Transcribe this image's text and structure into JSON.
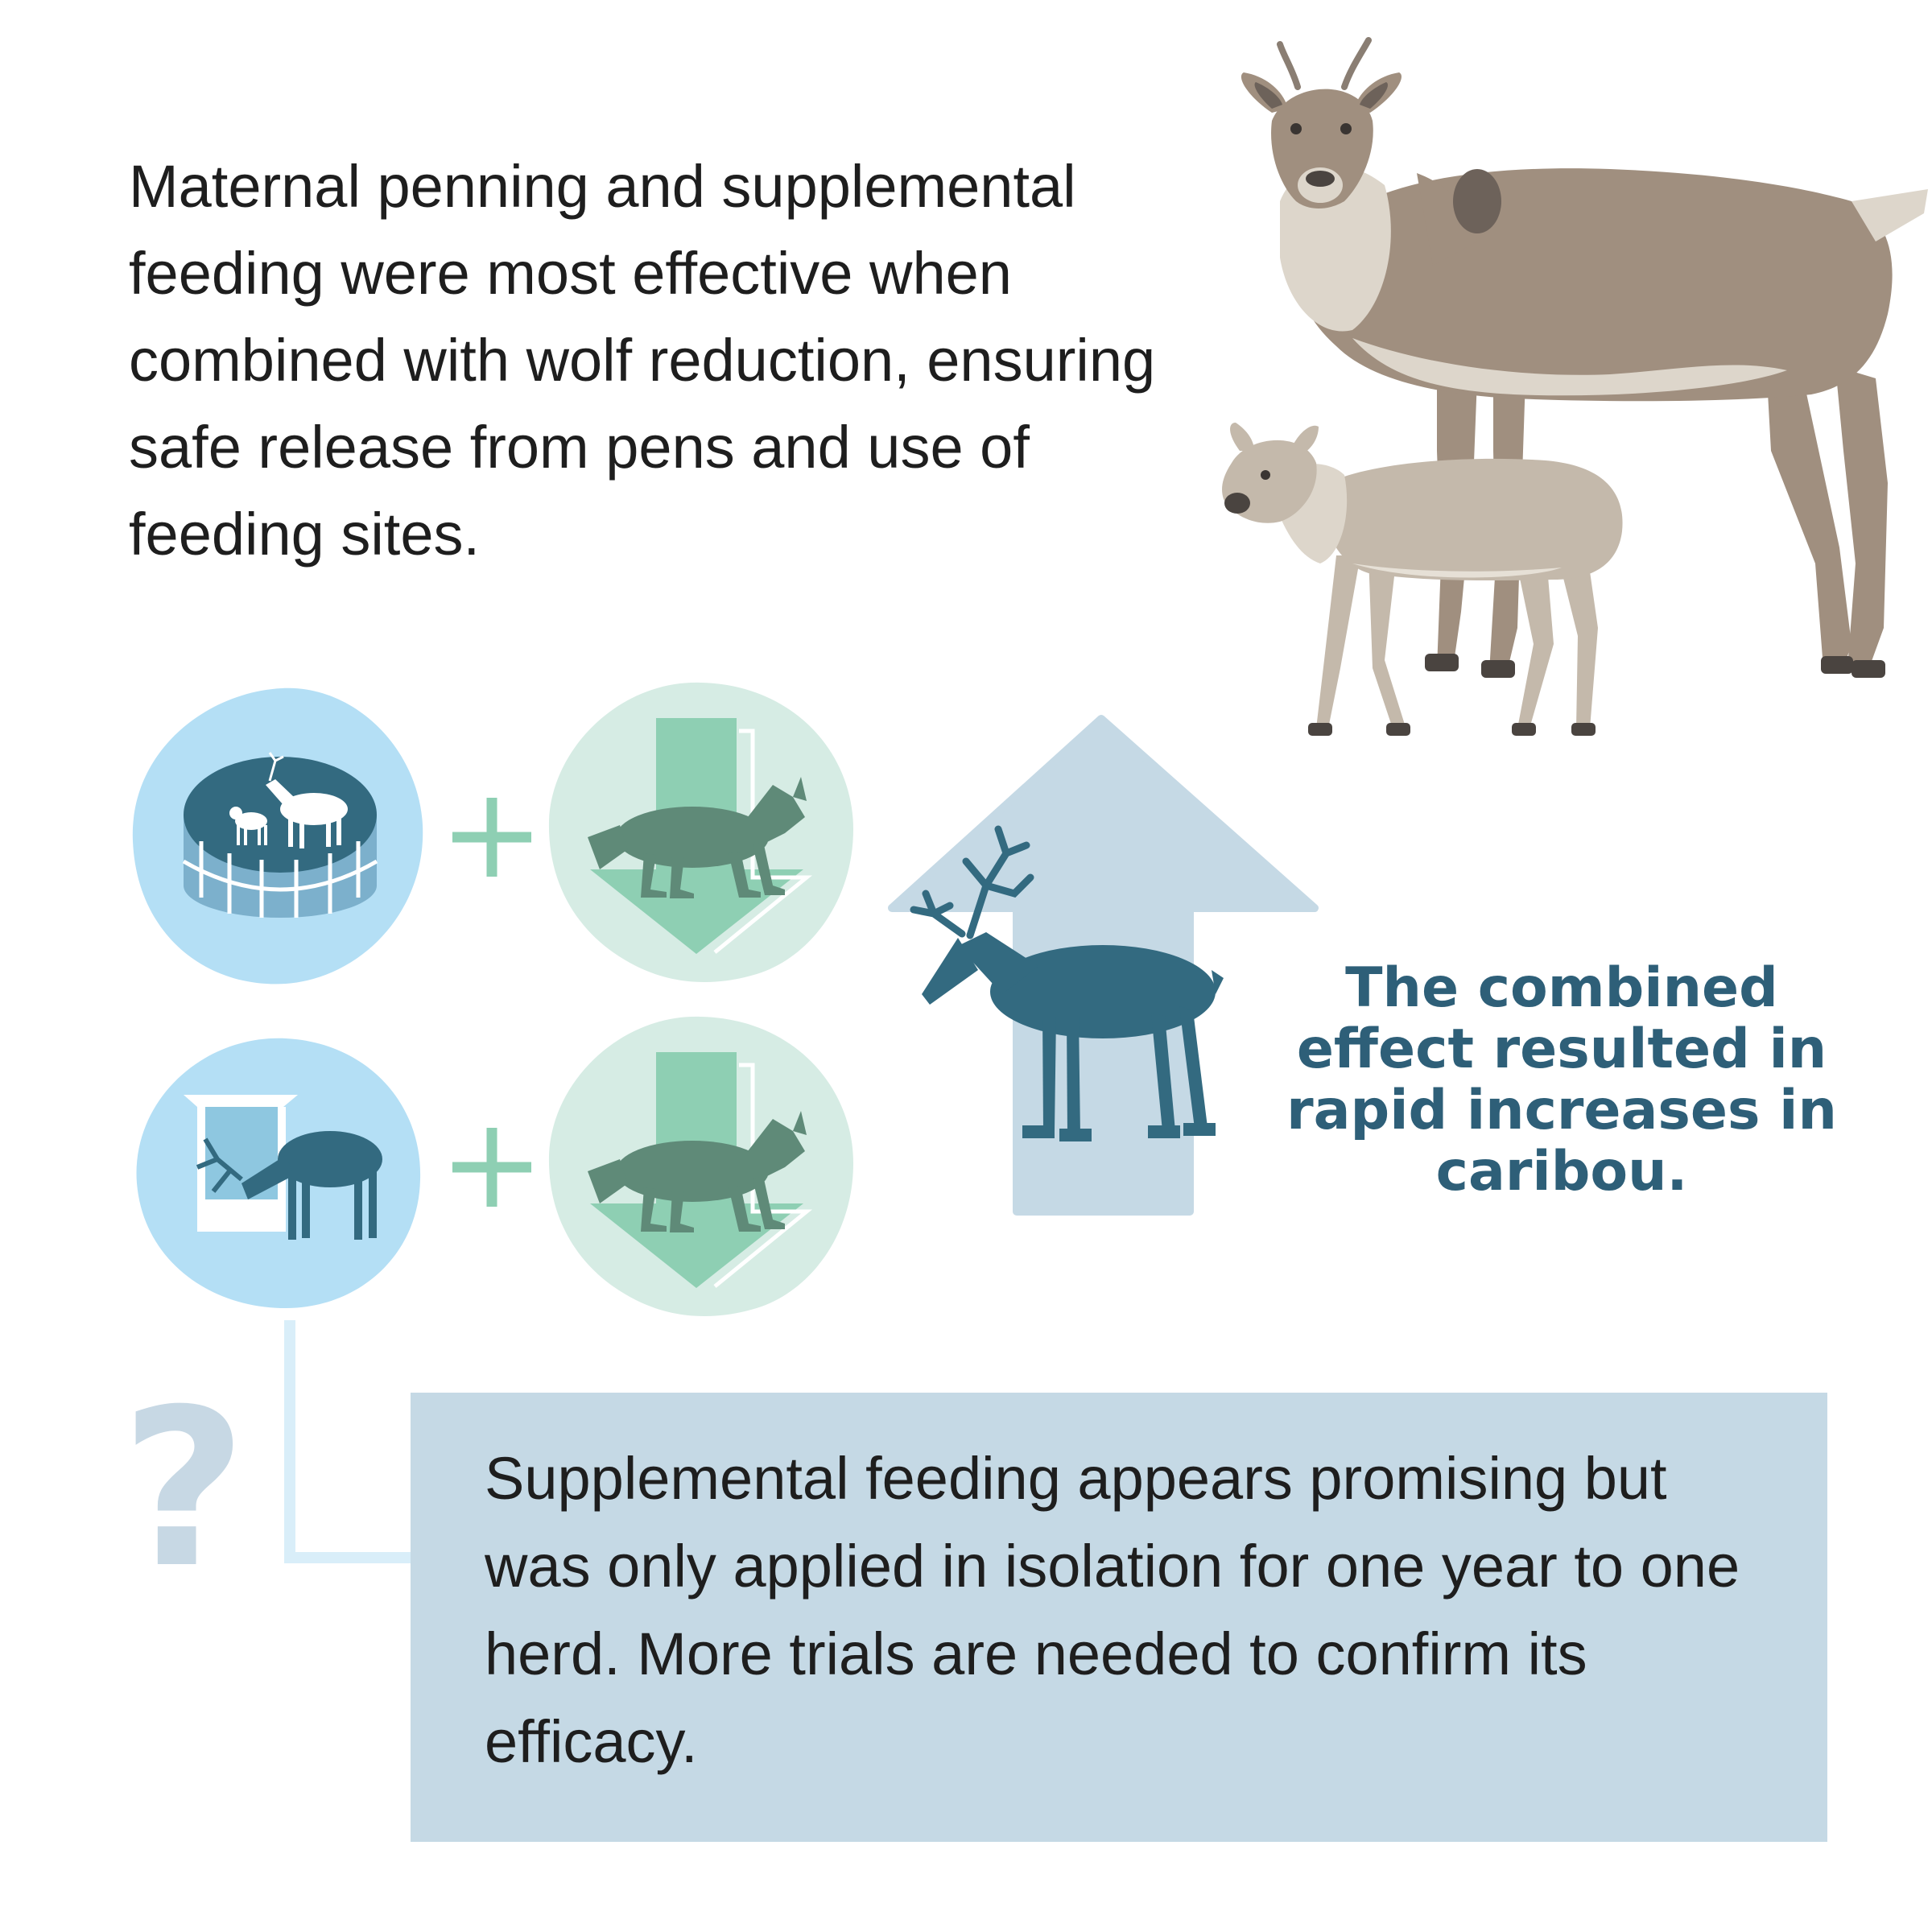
{
  "intro": {
    "text": "Maternal penning and supplemental feeding were most effective when combined with wolf reduction, ensuring safe release from pens and use of feeding sites."
  },
  "result": {
    "text": "The combined effect resulted in rapid increases in caribou."
  },
  "note": {
    "text": "Supplemental feeding appears promising but was only applied in isolation for one year to one herd. More trials are needed to confirm its efficacy.",
    "symbol": "?"
  },
  "combinations": [
    {
      "left_icon": "maternal-pen-icon",
      "operator": "+",
      "right_icon": "wolf-reduction-icon"
    },
    {
      "left_icon": "feeding-station-icon",
      "operator": "+",
      "right_icon": "wolf-reduction-icon"
    }
  ],
  "icons": {
    "illustration": "caribou-cow-and-calf",
    "increase": "caribou-increase-arrow-icon",
    "connector": "connector-line"
  },
  "colors": {
    "pen_blob": "#b4dff5",
    "wolf_blob": "#d6ece4",
    "down_arrow": "#8ecfb3",
    "plus": "#8ecfb3",
    "caribou_dark": "#336a80",
    "up_arrow": "#c5d9e5",
    "headline": "#2e5f78",
    "note_box": "#c5d9e5",
    "question_mark": "#c7d8e4",
    "connector": "#d9eef9"
  }
}
